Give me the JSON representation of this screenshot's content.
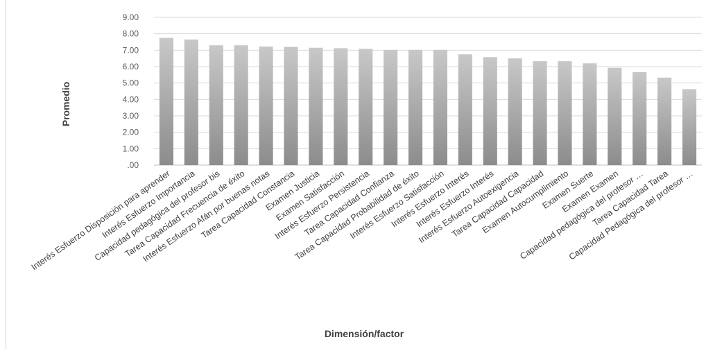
{
  "chart_data": {
    "type": "bar",
    "title": "",
    "xlabel": "Dimensión/factor",
    "ylabel": "Promedio",
    "ylim": [
      0,
      9
    ],
    "yticks": [
      ".00",
      "1.00",
      "2.00",
      "3.00",
      "4.00",
      "5.00",
      "6.00",
      "7.00",
      "8.00",
      "9.00"
    ],
    "grid": true,
    "bar_color": "#a6a6a6",
    "categories": [
      "Interés Esfuerzo Disposición para aprender",
      "Interés Esfuerzo Importancia",
      "Capacidad pedagógica del profesor bis",
      "Tarea Capacidad Frecuencia de éxito",
      "Interés Esfuerzo Afán por buenas notas",
      "Tarea Capacidad Constancia",
      "Examen Justicia",
      "Examen Satisfacción",
      "Interés Esfuerzo Persistencia",
      "Tarea Capacidad Confianza",
      "Tarea Capacidad Probabilidad de éxito",
      "Interés Esfuerzo Satisfacción",
      "Interés Esfuerzo Interés",
      "Interés Esfuerzo Interés",
      "Interés Esfuerzo Autoexigencia",
      "Tarea Capacidad Capacidad",
      "Examen Autocumplimiento",
      "Examen Suerte",
      "Examen Examen",
      "Capacidad pedagógica del profesor …",
      "Tarea Capacidad Tarea",
      "Capacidad Pedagógica del profesor …"
    ],
    "values": [
      7.75,
      7.65,
      7.3,
      7.3,
      7.22,
      7.2,
      7.15,
      7.12,
      7.08,
      7.02,
      7.02,
      7.02,
      6.75,
      6.58,
      6.5,
      6.33,
      6.33,
      6.2,
      5.93,
      5.67,
      5.33,
      4.63
    ]
  }
}
